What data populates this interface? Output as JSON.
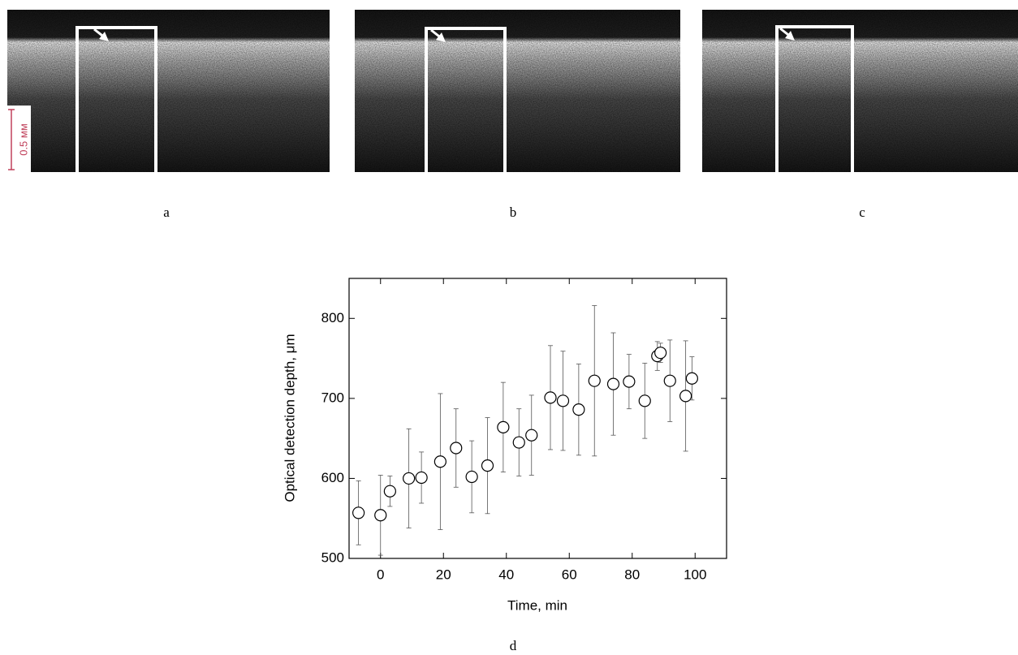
{
  "panels": [
    {
      "label": "a"
    },
    {
      "label": "b"
    },
    {
      "label": "c"
    }
  ],
  "scale_bar": "0.5 мм",
  "chart_data": {
    "type": "scatter",
    "panel_label": "d",
    "xlabel": "Time, min",
    "ylabel": "Optical detection depth, μm",
    "x": [
      -7,
      0,
      3,
      9,
      13,
      19,
      24,
      29,
      34,
      39,
      44,
      48,
      54,
      58,
      63,
      68,
      74,
      79,
      84,
      88,
      89,
      92,
      97,
      99
    ],
    "values": [
      557,
      554,
      584,
      600,
      601,
      621,
      638,
      602,
      616,
      664,
      645,
      654,
      701,
      697,
      686,
      722,
      718,
      721,
      697,
      753,
      757,
      722,
      703,
      725
    ],
    "errors": [
      40,
      50,
      19,
      62,
      32,
      85,
      49,
      45,
      60,
      56,
      42,
      50,
      65,
      62,
      57,
      94,
      64,
      34,
      47,
      18,
      12,
      51,
      69,
      27
    ],
    "color": "#000000",
    "xlim": [
      -10,
      110
    ],
    "ylim": [
      500,
      850
    ],
    "xticks": [
      0,
      20,
      40,
      60,
      80,
      100
    ],
    "yticks": [
      500,
      600,
      700,
      800
    ]
  }
}
